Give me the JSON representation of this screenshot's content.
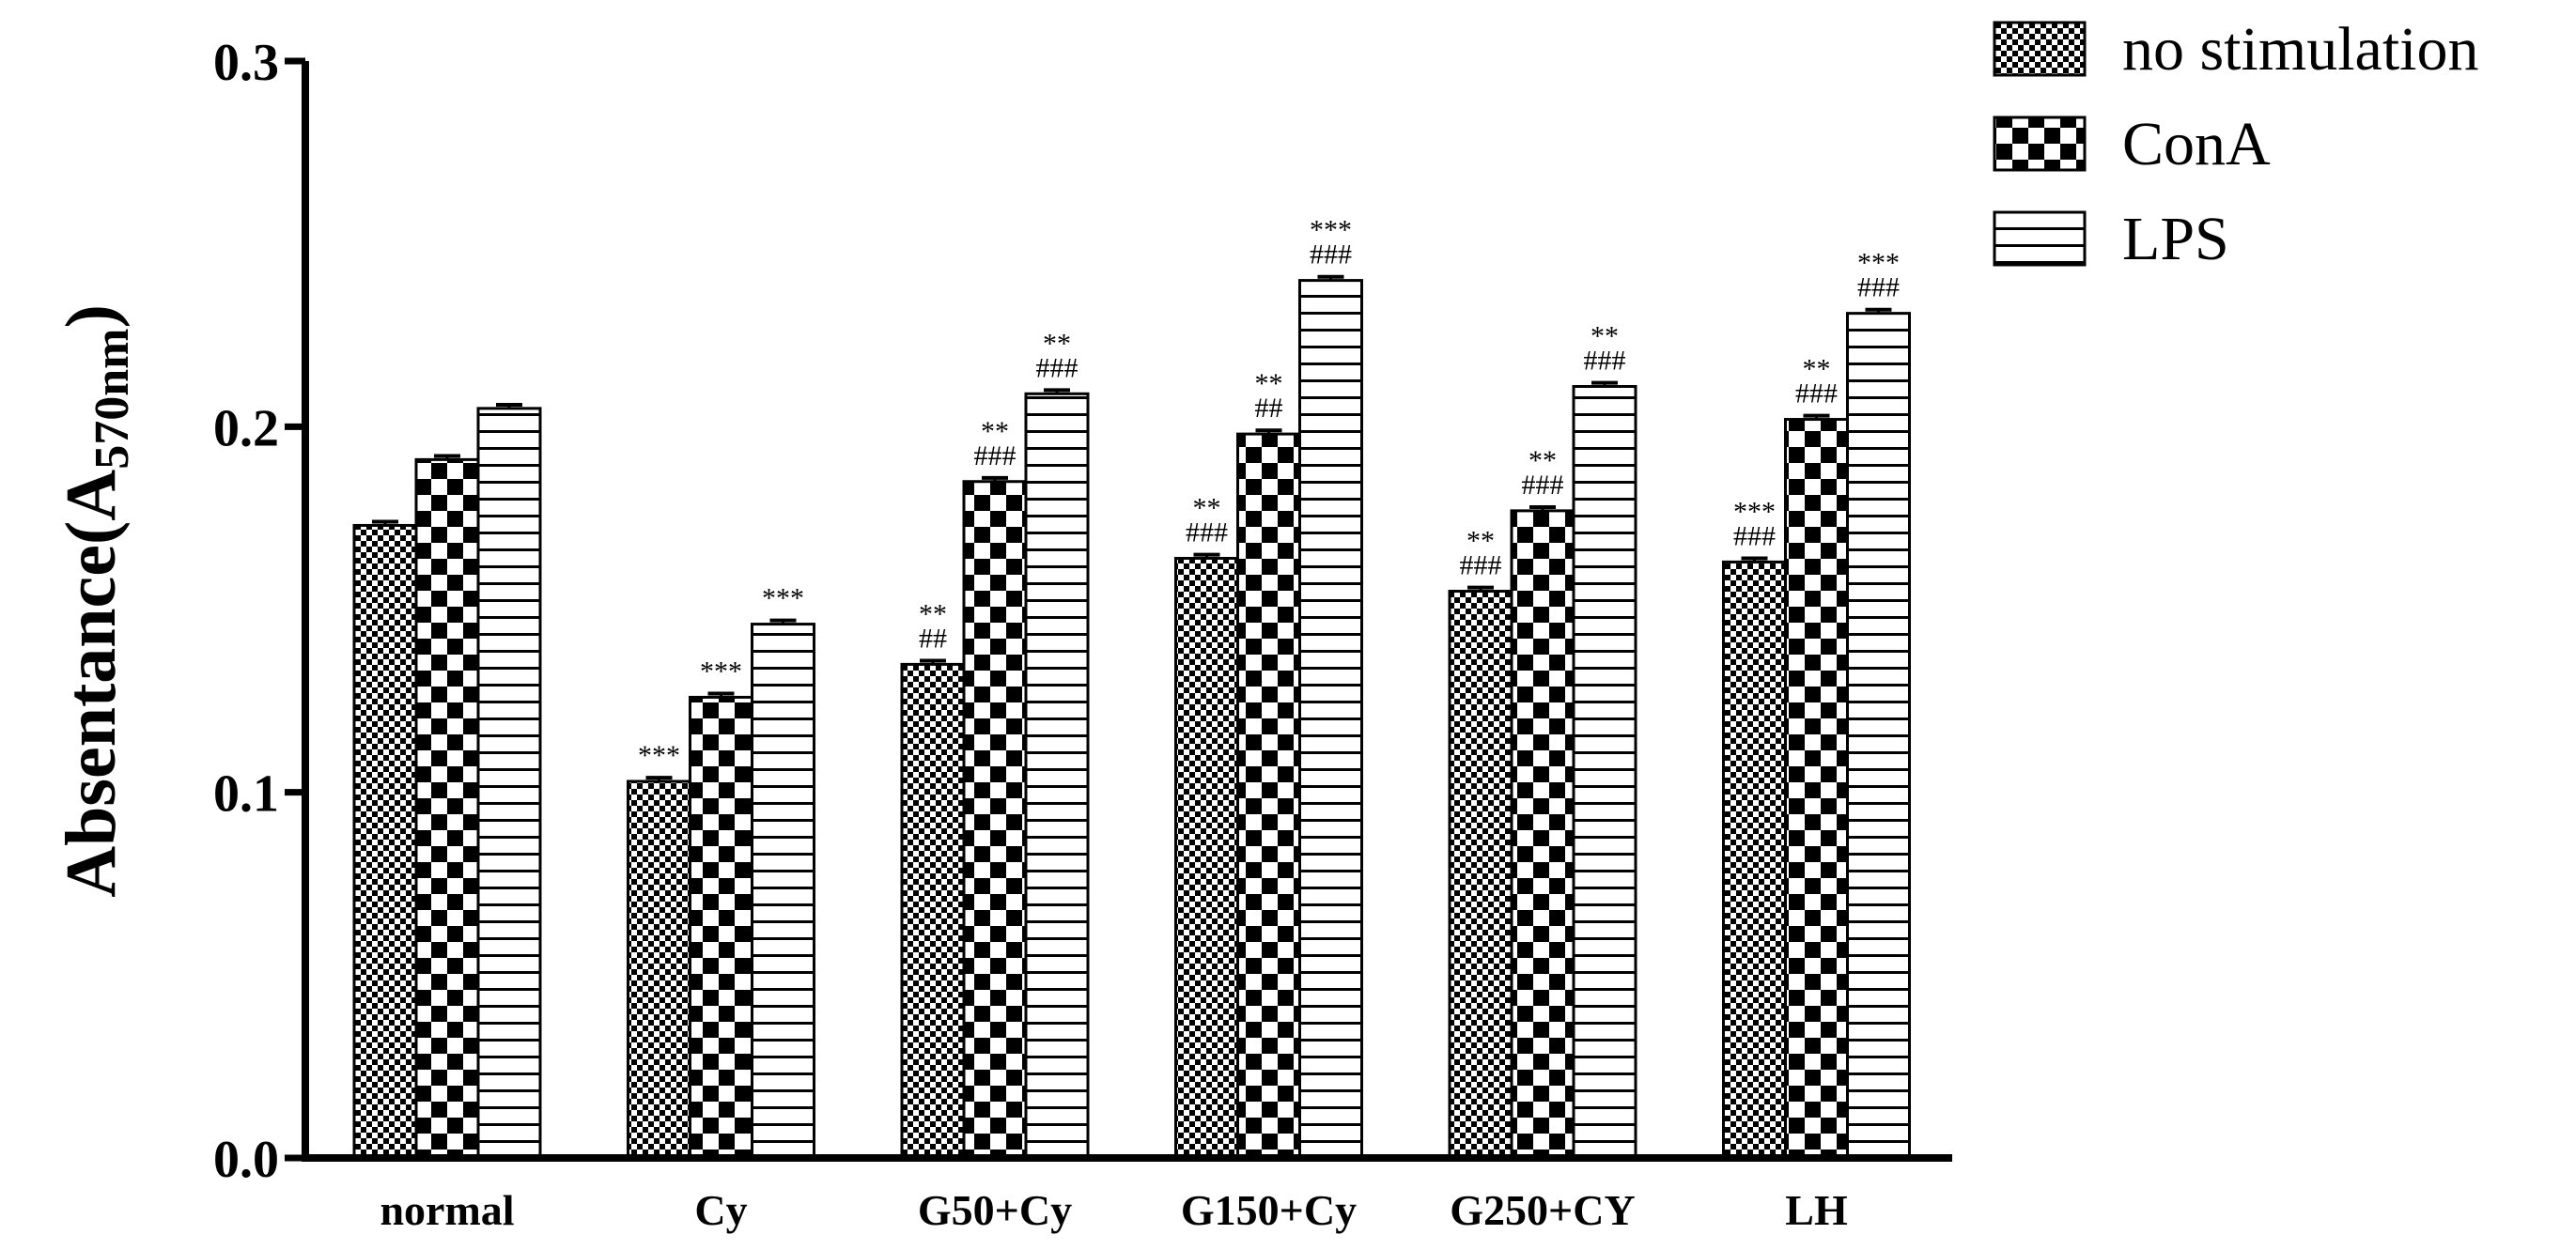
{
  "chart_data": {
    "type": "bar",
    "ylabel": "Absentance(A",
    "ylabel_sub": "570nm",
    "ylabel_close": ")",
    "xlabel": "",
    "ylim": [
      0,
      0.3
    ],
    "yticks": [
      0.0,
      0.1,
      0.2,
      0.3
    ],
    "ytick_labels": [
      "0.0",
      "0.1",
      "0.2",
      "0.3"
    ],
    "grid": false,
    "legend_position": "top-right",
    "categories": [
      "normal",
      "Cy",
      "G50+Cy",
      "G150+Cy",
      "G250+CY",
      "LH"
    ],
    "series": [
      {
        "name": "no stimulation",
        "pattern": "fine-check",
        "values": [
          0.173,
          0.103,
          0.135,
          0.164,
          0.155,
          0.163
        ],
        "errors": [
          0.001,
          0.001,
          0.001,
          0.001,
          0.001,
          0.001
        ]
      },
      {
        "name": "ConA",
        "pattern": "coarse-check",
        "values": [
          0.191,
          0.126,
          0.185,
          0.198,
          0.177,
          0.202
        ],
        "errors": [
          0.001,
          0.001,
          0.001,
          0.001,
          0.001,
          0.001
        ]
      },
      {
        "name": "LPS",
        "pattern": "horizontal-lines",
        "values": [
          0.205,
          0.146,
          0.209,
          0.24,
          0.211,
          0.231
        ],
        "errors": [
          0.001,
          0.001,
          0.001,
          0.001,
          0.001,
          0.001
        ]
      }
    ],
    "annotations": [
      [
        [],
        [],
        []
      ],
      [
        [
          "***"
        ],
        [
          "***"
        ],
        [
          "***"
        ]
      ],
      [
        [
          "**",
          "##"
        ],
        [
          "**",
          "###"
        ],
        [
          "**",
          "###"
        ]
      ],
      [
        [
          "**",
          "###"
        ],
        [
          "**",
          "##"
        ],
        [
          "***",
          "###"
        ]
      ],
      [
        [
          "**",
          "###"
        ],
        [
          "**",
          "###"
        ],
        [
          "**",
          "###"
        ]
      ],
      [
        [
          "***",
          "###"
        ],
        [
          "**",
          "###"
        ],
        [
          "***",
          "###"
        ]
      ]
    ],
    "colors": {
      "bar_fill": "#ffffff",
      "bar_stroke": "#000000",
      "axis": "#000000"
    }
  }
}
